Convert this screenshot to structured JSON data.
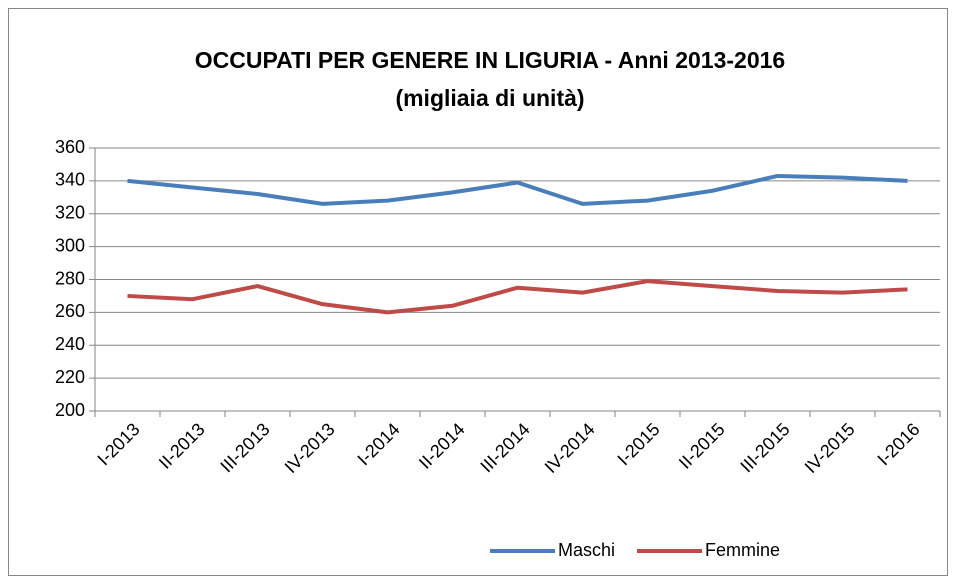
{
  "chart_data": {
    "type": "line",
    "title": "OCCUPATI PER GENERE IN LIGURIA - Anni 2013-2016",
    "subtitle": "(migliaia di unità)",
    "categories": [
      "I-2013",
      "II-2013",
      "III-2013",
      "IV-2013",
      "I-2014",
      "II-2014",
      "III-2014",
      "IV-2014",
      "I-2015",
      "II-2015",
      "III-2015",
      "IV-2015",
      "I-2016"
    ],
    "series": [
      {
        "name": "Maschi",
        "color": "#4a7ebb",
        "values": [
          340,
          336,
          332,
          326,
          328,
          333,
          339,
          326,
          328,
          334,
          343,
          342,
          340
        ]
      },
      {
        "name": "Femmine",
        "color": "#be4b48",
        "values": [
          270,
          268,
          276,
          265,
          260,
          264,
          275,
          272,
          279,
          276,
          273,
          272,
          274
        ]
      }
    ],
    "ylim": [
      200,
      360
    ],
    "yticks": [
      200,
      220,
      240,
      260,
      280,
      300,
      320,
      340,
      360
    ],
    "grid": true,
    "legend": "bottom"
  }
}
